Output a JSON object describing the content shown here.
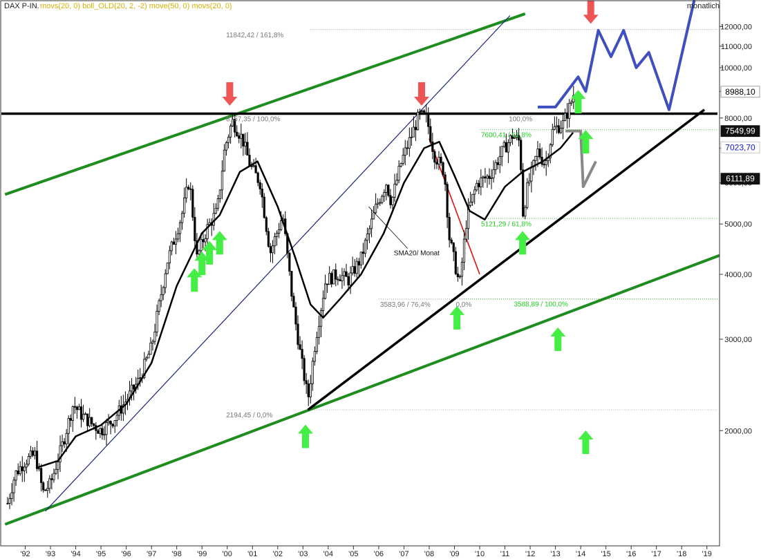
{
  "header": {
    "symbol": "DAX P-IN.",
    "indicators": "movs(20, 0) boll_OLD(20, 2, -2) move(50, 0) movs(20, 0)",
    "period": "monatlich"
  },
  "colors": {
    "background": "#ffffff",
    "candle": "#000000",
    "resistance": "#000000",
    "support_trend": "#000000",
    "channel": "#1e8c1e",
    "blue_trend": "#1a237e",
    "red_trend": "#e01010",
    "forecast": "#3f4fc0",
    "scenario_grey": "#888888",
    "arrow_up": "#44ee44",
    "arrow_down": "#ee5555",
    "fib_grey": "#777777",
    "fib_green": "#22cc22",
    "label_blue": "#1515d0"
  },
  "chart_data": {
    "type": "candlestick",
    "title": "DAX P-IN.",
    "scale": "log",
    "ylim": [
      1200,
      13500
    ],
    "xlim": [
      1991.0,
      2019.5
    ],
    "x_ticks": [
      "'92",
      "'93",
      "'94",
      "'95",
      "'96",
      "'97",
      "'98",
      "'99",
      "'00",
      "'01",
      "'02",
      "'03",
      "'04",
      "'05",
      "'06",
      "'07",
      "'08",
      "'09",
      "'10",
      "'11",
      "'12",
      "'13",
      "'14",
      "'15",
      "'16",
      "'17",
      "'18",
      "'19"
    ],
    "y_ticks": [
      "2000,00",
      "3000,00",
      "4000,00",
      "5000,00",
      "6000,00",
      "7000,00",
      "8000,00",
      "9000,00",
      "10000,00",
      "11000,00",
      "12000,00"
    ],
    "y_tick_values": [
      2000,
      3000,
      4000,
      5000,
      6000,
      7000,
      8000,
      9000,
      10000,
      11000,
      12000
    ],
    "price_path": [
      [
        1991.3,
        1450
      ],
      [
        1991.6,
        1650
      ],
      [
        1992.0,
        1750
      ],
      [
        1992.4,
        1800
      ],
      [
        1992.7,
        1520
      ],
      [
        1993.0,
        1580
      ],
      [
        1993.5,
        1900
      ],
      [
        1993.9,
        2250
      ],
      [
        1994.2,
        2150
      ],
      [
        1994.7,
        2050
      ],
      [
        1995.0,
        2000
      ],
      [
        1995.5,
        2100
      ],
      [
        1995.9,
        2250
      ],
      [
        1996.5,
        2500
      ],
      [
        1997.0,
        2900
      ],
      [
        1997.6,
        4200
      ],
      [
        1998.2,
        5200
      ],
      [
        1998.5,
        6100
      ],
      [
        1998.8,
        4300
      ],
      [
        1999.2,
        4900
      ],
      [
        1999.6,
        5300
      ],
      [
        1999.9,
        7000
      ],
      [
        2000.2,
        7900
      ],
      [
        2000.6,
        7300
      ],
      [
        2000.9,
        6500
      ],
      [
        2001.3,
        6000
      ],
      [
        2001.7,
        4400
      ],
      [
        2002.2,
        5200
      ],
      [
        2002.6,
        3500
      ],
      [
        2002.9,
        2800
      ],
      [
        2003.2,
        2300
      ],
      [
        2003.5,
        3000
      ],
      [
        2003.9,
        3900
      ],
      [
        2004.4,
        4000
      ],
      [
        2004.8,
        3900
      ],
      [
        2005.3,
        4300
      ],
      [
        2005.9,
        5400
      ],
      [
        2006.3,
        6000
      ],
      [
        2006.5,
        5500
      ],
      [
        2006.9,
        6600
      ],
      [
        2007.3,
        7400
      ],
      [
        2007.6,
        8100
      ],
      [
        2007.9,
        8000
      ],
      [
        2008.2,
        6800
      ],
      [
        2008.6,
        6300
      ],
      [
        2008.8,
        4700
      ],
      [
        2009.2,
        3800
      ],
      [
        2009.5,
        5200
      ],
      [
        2009.9,
        6000
      ],
      [
        2010.4,
        6200
      ],
      [
        2010.9,
        6900
      ],
      [
        2011.3,
        7400
      ],
      [
        2011.6,
        7200
      ],
      [
        2011.7,
        5200
      ],
      [
        2011.9,
        5900
      ],
      [
        2012.3,
        6900
      ],
      [
        2012.6,
        6500
      ],
      [
        2012.9,
        7600
      ],
      [
        2013.3,
        7800
      ],
      [
        2013.6,
        8500
      ],
      [
        2013.75,
        8988
      ]
    ],
    "sma20_path": [
      [
        1992.5,
        1700
      ],
      [
        1993.3,
        1750
      ],
      [
        1994.0,
        1950
      ],
      [
        1995.0,
        2050
      ],
      [
        1996.0,
        2250
      ],
      [
        1997.0,
        2700
      ],
      [
        1998.0,
        3800
      ],
      [
        1999.0,
        4800
      ],
      [
        1999.7,
        5200
      ],
      [
        2000.5,
        6300
      ],
      [
        2001.2,
        6600
      ],
      [
        2002.0,
        5400
      ],
      [
        2002.7,
        4300
      ],
      [
        2003.3,
        3500
      ],
      [
        2003.8,
        3300
      ],
      [
        2004.5,
        3600
      ],
      [
        2005.3,
        4000
      ],
      [
        2006.2,
        4800
      ],
      [
        2007.0,
        6000
      ],
      [
        2007.8,
        7000
      ],
      [
        2008.4,
        7200
      ],
      [
        2009.0,
        6200
      ],
      [
        2009.6,
        5300
      ],
      [
        2010.2,
        5100
      ],
      [
        2011.0,
        5900
      ],
      [
        2011.7,
        6300
      ],
      [
        2012.5,
        6600
      ],
      [
        2013.2,
        7000
      ],
      [
        2013.7,
        7500
      ]
    ],
    "forecast_blue": [
      [
        2012.3,
        8400
      ],
      [
        2013.0,
        8400
      ],
      [
        2013.9,
        9600
      ],
      [
        2014.2,
        9000
      ],
      [
        2014.7,
        11800
      ],
      [
        2015.2,
        10500
      ],
      [
        2015.7,
        11800
      ],
      [
        2016.2,
        10000
      ],
      [
        2016.7,
        10700
      ],
      [
        2017.5,
        8300
      ],
      [
        2018.5,
        13500
      ]
    ],
    "scenario_grey": [
      [
        2013.4,
        7550
      ],
      [
        2014.0,
        7550
      ],
      [
        2014.1,
        5900
      ],
      [
        2014.6,
        6600
      ]
    ],
    "resistance_level": 8157,
    "support_line": [
      [
        2003.2,
        2194
      ],
      [
        2018.9,
        8300
      ]
    ],
    "green_channel_upper": [
      [
        1991.2,
        5700
      ],
      [
        2011.8,
        12700
      ]
    ],
    "green_channel_lower": [
      [
        1991.2,
        1320
      ],
      [
        2019.5,
        4350
      ]
    ],
    "blue_trend": [
      [
        1992.8,
        1400
      ],
      [
        2011.2,
        12600
      ]
    ],
    "red_trend": [
      [
        2008.0,
        7300
      ],
      [
        2010.0,
        4000
      ]
    ],
    "fib_levels": [
      {
        "value": 11842,
        "label": "11842,42 / 161,8%",
        "style": "grey"
      },
      {
        "value": 8157,
        "label": "8157,35 / 100,0%",
        "style": "grey"
      },
      {
        "value": 8157,
        "label": "100,0%",
        "style": "grey"
      },
      {
        "value": 7600,
        "label": "7600,41 / 61,8%",
        "style": "green"
      },
      {
        "value": 5121,
        "label": "5121,29 / 61,8%",
        "style": "green"
      },
      {
        "value": 3588,
        "label": "3588,89 / 100,0%",
        "style": "green"
      },
      {
        "value": 3584,
        "label": "3583,96 / 76,4%",
        "style": "grey"
      },
      {
        "value": 3584,
        "label": "0,0%",
        "style": "grey"
      },
      {
        "value": 2194,
        "label": "2194,45 / 0,0%",
        "style": "grey"
      }
    ],
    "price_labels": [
      {
        "value": 8988.1,
        "text": "8988,10",
        "style": "plain"
      },
      {
        "value": 7549.99,
        "text": "7549,99",
        "style": "dark"
      },
      {
        "value": 7023.7,
        "text": "7023,70",
        "style": "blue"
      },
      {
        "value": 6111.89,
        "text": "6111,89",
        "style": "dark"
      }
    ],
    "annotations": [
      {
        "text": "SMA20/ Monat",
        "x": 2006.6,
        "y": 4350
      }
    ],
    "arrows_down": [
      {
        "x": 2000.1,
        "y": 8900
      },
      {
        "x": 2007.7,
        "y": 8900
      },
      {
        "x": 2014.4,
        "y": 12800
      }
    ],
    "arrows_up": [
      {
        "x": 2003.1,
        "y": 1950
      },
      {
        "x": 2009.1,
        "y": 3300
      },
      {
        "x": 2014.2,
        "y": 7200
      },
      {
        "x": 2013.9,
        "y": 8600
      },
      {
        "x": 2013.1,
        "y": 3000
      },
      {
        "x": 2014.2,
        "y": 1900
      },
      {
        "x": 2011.7,
        "y": 4600
      },
      {
        "x": 1998.7,
        "y": 3900
      },
      {
        "x": 1999.0,
        "y": 4200
      },
      {
        "x": 1999.3,
        "y": 4400
      },
      {
        "x": 1999.7,
        "y": 4600
      }
    ]
  }
}
